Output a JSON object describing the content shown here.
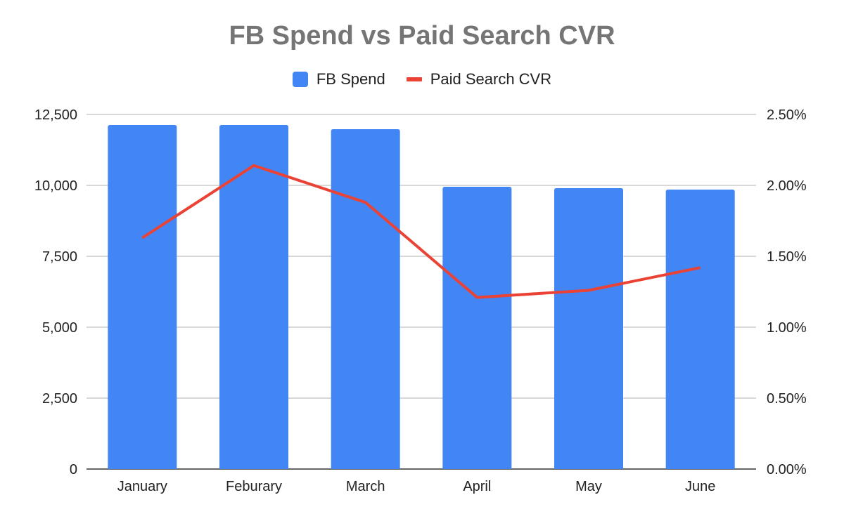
{
  "chart_data": {
    "type": "bar",
    "title": "FB Spend vs Paid Search CVR",
    "categories": [
      "January",
      "Feburary",
      "March",
      "April",
      "May",
      "June"
    ],
    "series": [
      {
        "name": "FB Spend",
        "type": "bar",
        "axis": "left",
        "color": "#4285f4",
        "values": [
          12130,
          12130,
          11980,
          9950,
          9900,
          9850
        ]
      },
      {
        "name": "Paid Search CVR",
        "type": "line",
        "axis": "right",
        "color": "#ea4335",
        "values": [
          0.0163,
          0.0214,
          0.0188,
          0.0121,
          0.0126,
          0.0142
        ]
      }
    ],
    "xlabel": "",
    "ylabel": "",
    "ylim": [
      0,
      12500
    ],
    "y2lim": [
      0,
      0.025
    ],
    "yticks": [
      "0",
      "2,500",
      "5,000",
      "7,500",
      "10,000",
      "12,500"
    ],
    "y2ticks": [
      "0.00%",
      "0.50%",
      "1.00%",
      "1.50%",
      "2.00%",
      "2.50%"
    ],
    "grid": true,
    "legend_position": "top"
  }
}
